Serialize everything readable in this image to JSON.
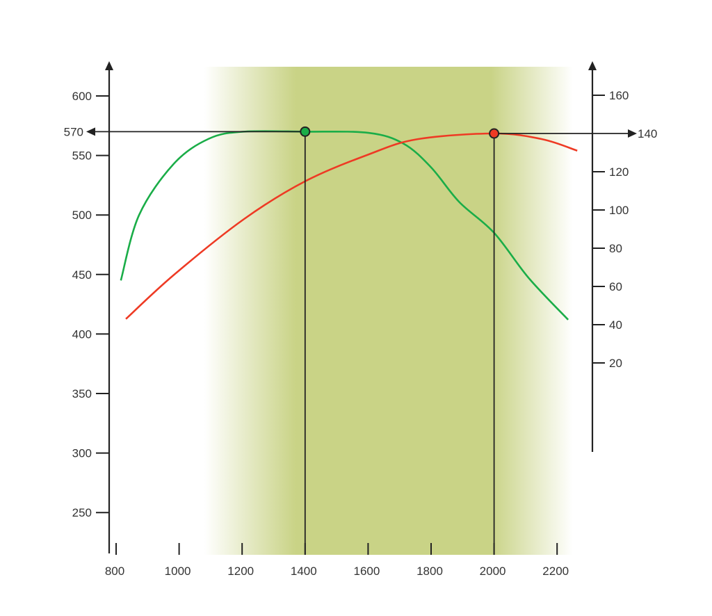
{
  "chart_data": {
    "type": "line",
    "title": "",
    "xlabel": "",
    "ylabel_left": "",
    "ylabel_right": "",
    "x_ticks": [
      800,
      1000,
      1200,
      1400,
      1600,
      1800,
      2000,
      2200
    ],
    "x_range": [
      800,
      2260
    ],
    "y_left_ticks": [
      250,
      300,
      350,
      400,
      450,
      500,
      550,
      600
    ],
    "y_left_range": [
      220,
      630
    ],
    "y_right_ticks": [
      20,
      40,
      60,
      80,
      100,
      120,
      160
    ],
    "y_right_range": [
      -40,
      180
    ],
    "grid": false,
    "highlight_band": {
      "x_fade_start": 1080,
      "x_full_start": 1370,
      "x_full_end": 1990,
      "x_fade_end": 2250,
      "color": "#c9d386"
    },
    "series": [
      {
        "name": "green curve (left axis)",
        "axis": "left",
        "color": "#1aad48",
        "x": [
          815,
          873,
          983,
          1094,
          1204,
          1400,
          1601,
          1712,
          1800,
          1889,
          2000,
          2110,
          2235
        ],
        "y": [
          445,
          500,
          543,
          564,
          570,
          570,
          569,
          560,
          540,
          511,
          485,
          447,
          412
        ]
      },
      {
        "name": "red curve (right axis)",
        "axis": "right",
        "color": "#ee3a24",
        "x": [
          831,
          983,
          1204,
          1400,
          1601,
          1756,
          2000,
          2153,
          2264
        ],
        "y": [
          43,
          66,
          95,
          115,
          129,
          137,
          140,
          137,
          131
        ]
      }
    ],
    "annotations": [
      {
        "series": "green curve (left axis)",
        "x": 1400,
        "y": 570,
        "label": "570",
        "direction": "left"
      },
      {
        "series": "red curve (right axis)",
        "x": 2000,
        "y": 140,
        "label": "140",
        "direction": "right"
      }
    ]
  }
}
